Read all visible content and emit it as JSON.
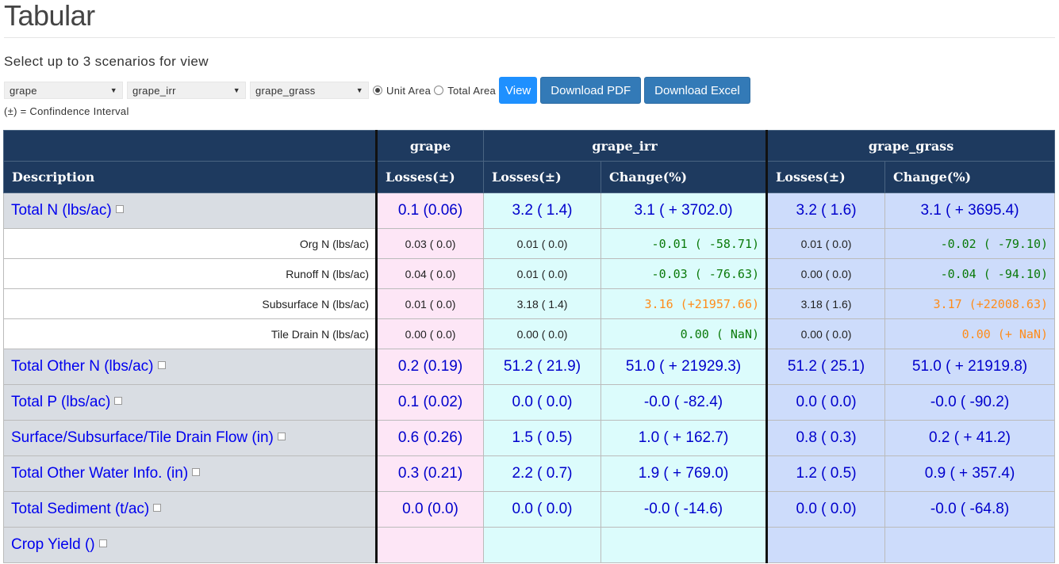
{
  "page": {
    "title": "Tabular",
    "subtitle": "Select up to 3 scenarios for view",
    "note": "(±) = Confindence Interval"
  },
  "controls": {
    "scenario1": "grape",
    "scenario2": "grape_irr",
    "scenario3": "grape_grass",
    "radio_unit": "Unit Area",
    "radio_total": "Total Area",
    "selected_radio": "Unit Area",
    "view_label": "View",
    "pdf_label": "Download PDF",
    "excel_label": "Download Excel"
  },
  "table": {
    "description_header": "Description",
    "scenarios": [
      "grape",
      "grape_irr",
      "grape_grass"
    ],
    "losses_header": "Losses(±)",
    "change_header": "Change(%)",
    "rows": [
      {
        "label": "Total N (lbs/ac)",
        "kind": "section",
        "s1": "0.1 (0.06)",
        "s2": "3.2 ( 1.4)",
        "c2": "3.1 ( + 3702.0)",
        "s3": "3.2 ( 1.6)",
        "c3": "3.1 ( + 3695.4)"
      },
      {
        "label": "Org N (lbs/ac)",
        "kind": "sub",
        "s1": "0.03 ( 0.0)",
        "s2": "0.01 ( 0.0)",
        "c2": "-0.01 ( -58.71)",
        "c2color": "green",
        "s3": "0.01 ( 0.0)",
        "c3": "-0.02 ( -79.10)",
        "c3color": "green"
      },
      {
        "label": "Runoff N (lbs/ac)",
        "kind": "sub",
        "s1": "0.04 ( 0.0)",
        "s2": "0.01 ( 0.0)",
        "c2": "-0.03 ( -76.63)",
        "c2color": "green",
        "s3": "0.00 ( 0.0)",
        "c3": "-0.04 ( -94.10)",
        "c3color": "green"
      },
      {
        "label": "Subsurface N (lbs/ac)",
        "kind": "sub",
        "s1": "0.01 ( 0.0)",
        "s2": "3.18 ( 1.4)",
        "c2": "3.16 (+21957.66)",
        "c2color": "orange",
        "s3": "3.18 ( 1.6)",
        "c3": "3.17 (+22008.63)",
        "c3color": "orange"
      },
      {
        "label": "Tile Drain N (lbs/ac)",
        "kind": "sub",
        "s1": "0.00 ( 0.0)",
        "s2": "0.00 ( 0.0)",
        "c2": "0.00 ( NaN)",
        "c2color": "green",
        "s3": "0.00 ( 0.0)",
        "c3": "0.00 (+ NaN)",
        "c3color": "orange"
      },
      {
        "label": "Total Other N (lbs/ac)",
        "kind": "section",
        "s1": "0.2 (0.19)",
        "s2": "51.2 ( 21.9)",
        "c2": "51.0 ( + 21929.3)",
        "s3": "51.2 ( 25.1)",
        "c3": "51.0 ( + 21919.8)"
      },
      {
        "label": "Total P (lbs/ac)",
        "kind": "section",
        "s1": "0.1 (0.02)",
        "s2": "0.0 ( 0.0)",
        "c2": "-0.0 ( -82.4)",
        "s3": "0.0 ( 0.0)",
        "c3": "-0.0 ( -90.2)"
      },
      {
        "label": "Surface/Subsurface/Tile Drain Flow (in)",
        "kind": "section",
        "s1": "0.6 (0.26)",
        "s2": "1.5 ( 0.5)",
        "c2": "1.0 ( + 162.7)",
        "s3": "0.8 ( 0.3)",
        "c3": "0.2 ( + 41.2)"
      },
      {
        "label": "Total Other Water Info. (in)",
        "kind": "section",
        "s1": "0.3 (0.21)",
        "s2": "2.2 ( 0.7)",
        "c2": "1.9 ( + 769.0)",
        "s3": "1.2 ( 0.5)",
        "c3": "0.9 ( + 357.4)"
      },
      {
        "label": "Total Sediment (t/ac)",
        "kind": "section",
        "s1": "0.0 (0.0)",
        "s2": "0.0 ( 0.0)",
        "c2": "-0.0 ( -14.6)",
        "s3": "0.0 ( 0.0)",
        "c3": "-0.0 ( -64.8)"
      },
      {
        "label": "Crop Yield ()",
        "kind": "section",
        "s1": "",
        "s2": "",
        "c2": "",
        "s3": "",
        "c3": ""
      }
    ]
  }
}
